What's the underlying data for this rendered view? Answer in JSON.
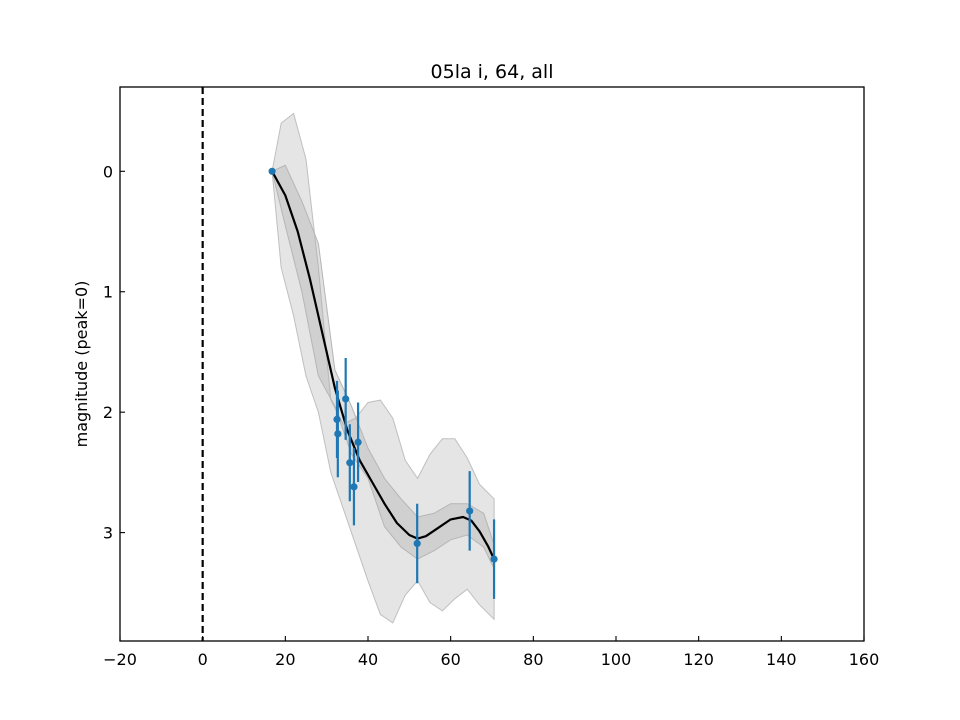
{
  "chart_data": {
    "type": "line",
    "title": "05la i, 64, all",
    "xlabel": "",
    "ylabel": "magnitude (peak=0)",
    "xlim": [
      -20,
      160
    ],
    "ylim": [
      3.9,
      -0.7
    ],
    "y_inverted": true,
    "xticks": [
      -20,
      0,
      20,
      40,
      60,
      80,
      100,
      120,
      140,
      160
    ],
    "xtick_labels": [
      "−20",
      "0",
      "20",
      "40",
      "60",
      "80",
      "100",
      "120",
      "140",
      "160"
    ],
    "yticks": [
      0,
      1,
      2,
      3
    ],
    "ytick_labels": [
      "0",
      "1",
      "2",
      "3"
    ],
    "grid": false,
    "reference_line": {
      "x": 0,
      "style": "dashed",
      "color": "#000000"
    },
    "colors": {
      "points": "#1f77b4",
      "fit": "#000000",
      "band": "#bfbfbf"
    },
    "observations": {
      "x": [
        16.8,
        32.5,
        32.7,
        34.6,
        35.6,
        36.6,
        37.6,
        51.9,
        64.6,
        70.5
      ],
      "y": [
        0.0,
        2.06,
        2.18,
        1.89,
        2.42,
        2.62,
        2.25,
        3.09,
        2.82,
        3.22
      ],
      "yerr": [
        0.0,
        0.32,
        0.36,
        0.34,
        0.32,
        0.32,
        0.33,
        0.33,
        0.33,
        0.33
      ]
    },
    "fit": {
      "x": [
        16.8,
        20,
        23,
        26,
        29,
        32,
        35,
        38,
        41,
        44,
        47,
        50,
        52,
        54,
        57,
        60,
        63,
        65,
        67,
        69,
        70.5
      ],
      "y": [
        0.0,
        0.2,
        0.5,
        0.9,
        1.35,
        1.8,
        2.15,
        2.4,
        2.58,
        2.76,
        2.92,
        3.02,
        3.05,
        3.03,
        2.96,
        2.89,
        2.87,
        2.9,
        2.99,
        3.11,
        3.22
      ]
    },
    "band_1sigma": {
      "x": [
        16.8,
        20,
        24,
        28,
        32,
        36,
        40,
        44,
        48,
        52,
        56,
        60,
        64,
        68,
        70.5
      ],
      "lower": [
        0.0,
        -0.05,
        0.25,
        0.6,
        1.65,
        1.95,
        2.3,
        2.55,
        2.72,
        2.87,
        2.84,
        2.76,
        2.76,
        2.84,
        3.1
      ],
      "upper": [
        0.0,
        0.45,
        1.0,
        1.7,
        1.95,
        2.35,
        2.55,
        2.95,
        3.12,
        3.22,
        3.15,
        3.06,
        3.02,
        3.12,
        3.3
      ]
    },
    "band_2sigma": {
      "x": [
        16.8,
        19,
        22,
        25,
        28,
        31,
        34,
        37,
        40,
        43,
        46,
        49,
        52,
        55,
        58,
        61,
        64,
        67,
        70.5
      ],
      "lower": [
        0.0,
        -0.4,
        -0.48,
        -0.1,
        0.8,
        1.9,
        2.1,
        2.05,
        1.92,
        1.9,
        2.05,
        2.4,
        2.55,
        2.35,
        2.22,
        2.22,
        2.38,
        2.6,
        2.72
      ],
      "upper": [
        0.0,
        0.8,
        1.2,
        1.7,
        2.0,
        2.5,
        2.8,
        3.1,
        3.4,
        3.68,
        3.75,
        3.52,
        3.4,
        3.58,
        3.65,
        3.55,
        3.47,
        3.6,
        3.72
      ]
    }
  }
}
